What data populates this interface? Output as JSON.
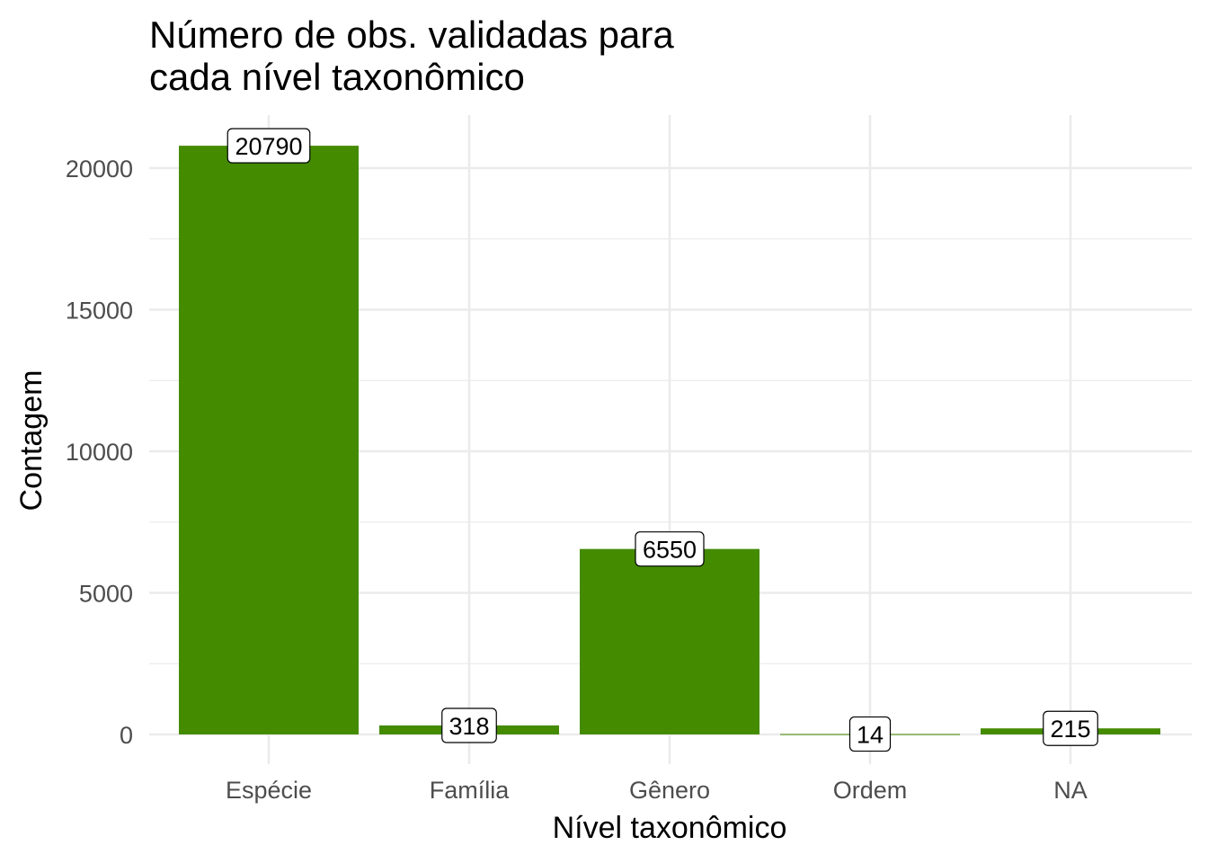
{
  "chart_data": {
    "type": "bar",
    "title_lines": [
      "Número de obs. validadas para",
      "cada nível taxonômico"
    ],
    "xlabel": "Nível taxonômico",
    "ylabel": "Contagem",
    "categories": [
      "Espécie",
      "Família",
      "Gênero",
      "Ordem",
      "NA"
    ],
    "values": [
      20790,
      318,
      6550,
      14,
      215
    ],
    "data_labels": [
      "20790",
      "318",
      "6550",
      "14",
      "215"
    ],
    "ylim": [
      0,
      22000
    ],
    "y_ticks": [
      0,
      5000,
      10000,
      15000,
      20000
    ],
    "y_tick_labels": [
      "0",
      "5000",
      "10000",
      "15000",
      "20000"
    ],
    "grid": true,
    "legend": "none",
    "bar_color": "#448B00"
  }
}
